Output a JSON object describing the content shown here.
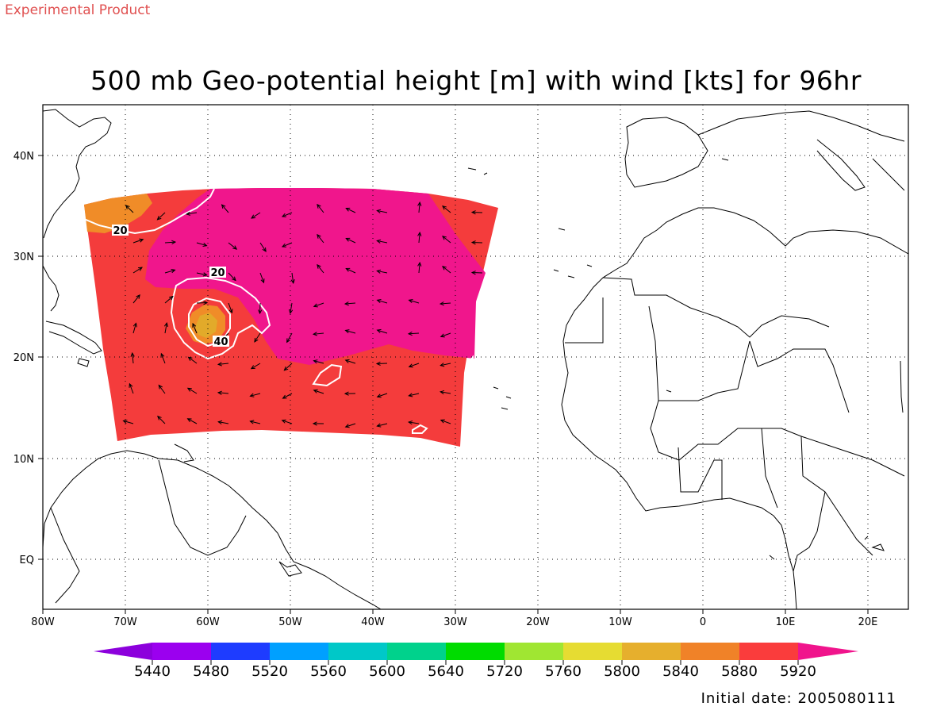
{
  "header": {
    "experimental_label": "Experimental Product",
    "title": "500 mb Geo-potential height [m] with wind [kts] for 96hr"
  },
  "footer": {
    "initial_date": "Initial date: 2005080111"
  },
  "map": {
    "lon_range": [
      -80,
      25
    ],
    "lat_range": [
      -5,
      45
    ],
    "lon_ticks": [
      "80W",
      "70W",
      "60W",
      "50W",
      "40W",
      "30W",
      "20W",
      "10W",
      "0",
      "10E",
      "20E"
    ],
    "lat_ticks": [
      "EQ",
      "10N",
      "20N",
      "30N",
      "40N"
    ],
    "grid": "dotted",
    "contour_labels": [
      "20",
      "20",
      "40"
    ],
    "wind_vectors": "arrows",
    "colors": {
      "c5920": "#f0168c",
      "c5880": "#f43c3c",
      "c5840": "#f08c28",
      "c5800": "#e2aa2a",
      "contour_line": "#ffffff"
    }
  },
  "colorbar": {
    "labels": [
      "5440",
      "5480",
      "5520",
      "5560",
      "5600",
      "5640",
      "5720",
      "5760",
      "5800",
      "5840",
      "5880",
      "5920"
    ],
    "colors": [
      "#8c00dc",
      "#9b00ef",
      "#1e3cff",
      "#00a0ff",
      "#00c8c8",
      "#00d28c",
      "#00dc00",
      "#a0e632",
      "#e6dc32",
      "#e6af2d",
      "#f08228",
      "#fa3c3c",
      "#f0148c"
    ]
  }
}
